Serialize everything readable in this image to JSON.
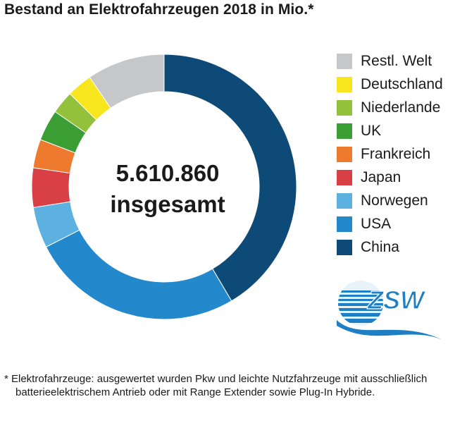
{
  "title": "Bestand an Elektrofahrzeugen 2018 in Mio.*",
  "center": {
    "line1": "5.610.860",
    "line2": "insgesamt"
  },
  "footnote": "* Elektrofahrzeuge: ausgewertet wurden Pkw und leichte Nutzfahrzeuge mit ausschließlich batterieelektrischem Antrieb oder mit Range Extender sowie Plug-In Hybride.",
  "logo": {
    "text": "ZSW"
  },
  "chart_data": {
    "type": "pie",
    "variant": "donut",
    "legend_position": "right",
    "slices": [
      {
        "label": "China",
        "value": 41.5,
        "color": "#0d4a77"
      },
      {
        "label": "USA",
        "value": 26.0,
        "color": "#2389cc"
      },
      {
        "label": "Norwegen",
        "value": 5.0,
        "color": "#5db1e0"
      },
      {
        "label": "Japan",
        "value": 4.8,
        "color": "#d94045"
      },
      {
        "label": "Frankreich",
        "value": 3.5,
        "color": "#ee7a30"
      },
      {
        "label": "UK",
        "value": 3.8,
        "color": "#3a9e35"
      },
      {
        "label": "Niederlande",
        "value": 2.8,
        "color": "#93c13c"
      },
      {
        "label": "Deutschland",
        "value": 3.1,
        "color": "#f7e51e"
      },
      {
        "label": "Restl. Welt",
        "value": 9.5,
        "color": "#c6c7c8"
      }
    ],
    "legend": [
      {
        "label": "Restl. Welt",
        "color": "#c6c7c8"
      },
      {
        "label": "Deutschland",
        "color": "#f7e51e"
      },
      {
        "label": "Niederlande",
        "color": "#93c13c"
      },
      {
        "label": "UK",
        "color": "#3a9e35"
      },
      {
        "label": "Frankreich",
        "color": "#ee7a30"
      },
      {
        "label": "Japan",
        "color": "#d94045"
      },
      {
        "label": "Norwegen",
        "color": "#5db1e0"
      },
      {
        "label": "USA",
        "color": "#2389cc"
      },
      {
        "label": "China",
        "color": "#0d4a77"
      }
    ]
  }
}
